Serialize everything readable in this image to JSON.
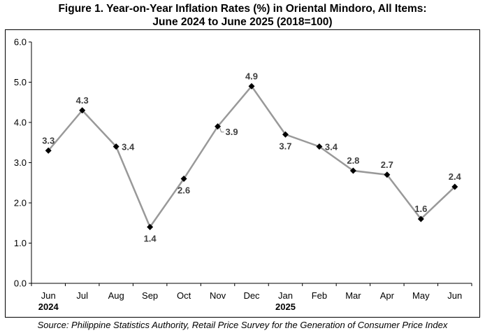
{
  "chart_data": {
    "type": "line",
    "title_line1": "Figure 1. Year-on-Year Inflation Rates (%) in Oriental Mindoro, All Items:",
    "title_line2": "June 2024 to June 2025 (2018=100)",
    "source": "Source: Philippine Statistics Authority, Retail Price Survey for the Generation of Consumer Price Index",
    "categories": [
      "Jun",
      "Jul",
      "Aug",
      "Sep",
      "Oct",
      "Nov",
      "Dec",
      "Jan",
      "Feb",
      "Mar",
      "Apr",
      "May",
      "Jun"
    ],
    "year_labels": [
      {
        "category_index": 0,
        "text": "2024"
      },
      {
        "category_index": 7,
        "text": "2025"
      }
    ],
    "series": [
      {
        "values": [
          3.3,
          4.3,
          3.4,
          1.4,
          2.6,
          3.9,
          4.9,
          3.7,
          3.4,
          2.8,
          2.7,
          1.6,
          2.4
        ]
      }
    ],
    "data_labels": [
      "3.3",
      "4.3",
      "3.4",
      "1.4",
      "2.6",
      "3.9",
      "4.9",
      "3.7",
      "3.4",
      "2.8",
      "2.7",
      "1.6",
      "2.4"
    ],
    "label_positions": [
      "above",
      "above",
      "right",
      "below",
      "below",
      "right-leader",
      "above",
      "below",
      "right",
      "above",
      "above",
      "above",
      "above"
    ],
    "yticks": [
      "0.0",
      "1.0",
      "2.0",
      "3.0",
      "4.0",
      "5.0",
      "6.0"
    ],
    "ylim": [
      0,
      6
    ],
    "grid": false,
    "line_color": "#999999",
    "marker_color": "#000000",
    "label_color": "#404040"
  }
}
